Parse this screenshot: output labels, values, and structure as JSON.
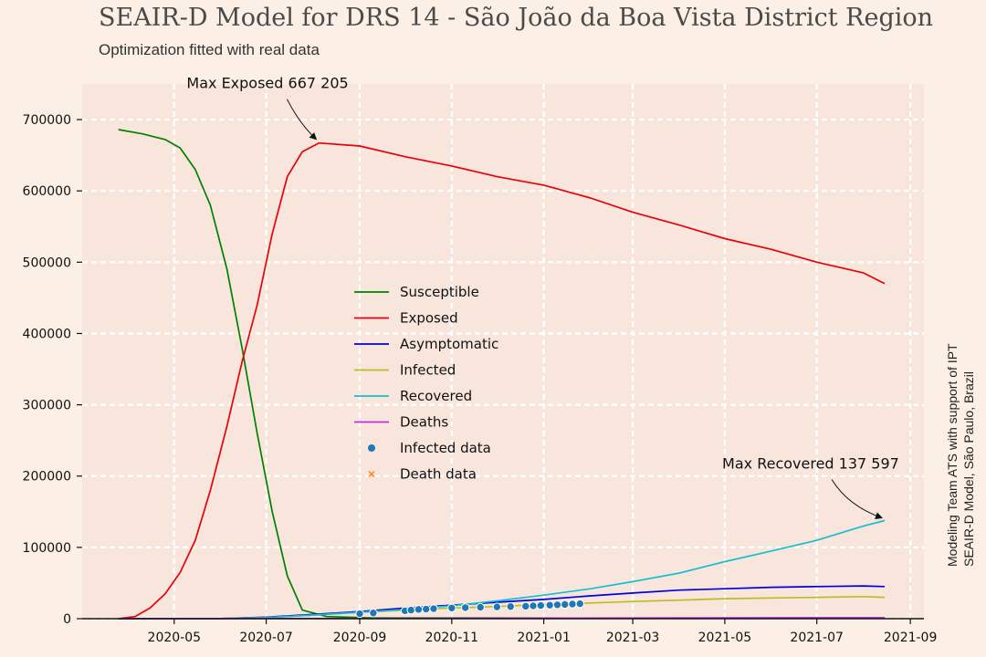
{
  "title": "SEAIR-D Model for DRS 14 - São João da Boa Vista District Region",
  "subtitle": "Optimization fitted with real data",
  "side_note": [
    "Modeling Team ATS with support of IPT",
    "SEAIR-D Model, São Paulo, Brazil"
  ],
  "colors": {
    "background": "#fcf0e6",
    "plot_bg": "#f8e6dc",
    "Susceptible": "#008000",
    "Exposed": "#e8000b",
    "Asymptomatic": "#0000e0",
    "Infected": "#bcbd22",
    "Recovered": "#17becf",
    "Deaths": "#c030d8",
    "Infected data": "#1f77b4",
    "Death data": "#ff7f0e"
  },
  "chart_data": {
    "type": "line",
    "title": "SEAIR-D Model for DRS 14 - São João da Boa Vista District Region",
    "subtitle": "Optimization fitted with real data",
    "xlabel": "",
    "ylabel": "",
    "x_range": [
      "2020-03-01",
      "2021-09-10"
    ],
    "ylim": [
      0,
      750000
    ],
    "x_ticks": [
      "2020-05",
      "2020-07",
      "2020-09",
      "2020-11",
      "2021-01",
      "2021-03",
      "2021-05",
      "2021-07",
      "2021-09"
    ],
    "y_ticks": [
      0,
      100000,
      200000,
      300000,
      400000,
      500000,
      600000,
      700000
    ],
    "grid": true,
    "legend_position": "center",
    "series": [
      {
        "name": "Susceptible",
        "points": [
          [
            "2020-03-25",
            686000
          ],
          [
            "2020-04-10",
            680000
          ],
          [
            "2020-04-25",
            672000
          ],
          [
            "2020-05-05",
            660000
          ],
          [
            "2020-05-15",
            630000
          ],
          [
            "2020-05-25",
            580000
          ],
          [
            "2020-06-05",
            490000
          ],
          [
            "2020-06-15",
            380000
          ],
          [
            "2020-06-25",
            260000
          ],
          [
            "2020-07-05",
            150000
          ],
          [
            "2020-07-15",
            60000
          ],
          [
            "2020-07-25",
            12000
          ],
          [
            "2020-08-10",
            3000
          ],
          [
            "2020-09-10",
            1000
          ],
          [
            "2021-08-15",
            500
          ]
        ]
      },
      {
        "name": "Exposed",
        "points": [
          [
            "2020-03-25",
            0
          ],
          [
            "2020-04-05",
            3000
          ],
          [
            "2020-04-15",
            15000
          ],
          [
            "2020-04-25",
            35000
          ],
          [
            "2020-05-05",
            65000
          ],
          [
            "2020-05-15",
            110000
          ],
          [
            "2020-05-25",
            180000
          ],
          [
            "2020-06-05",
            270000
          ],
          [
            "2020-06-15",
            360000
          ],
          [
            "2020-06-25",
            440000
          ],
          [
            "2020-07-05",
            540000
          ],
          [
            "2020-07-15",
            620000
          ],
          [
            "2020-07-25",
            655000
          ],
          [
            "2020-08-05",
            667205
          ],
          [
            "2020-09-01",
            663000
          ],
          [
            "2020-10-01",
            648000
          ],
          [
            "2020-11-01",
            635000
          ],
          [
            "2020-12-01",
            620000
          ],
          [
            "2021-01-01",
            608000
          ],
          [
            "2021-02-01",
            590000
          ],
          [
            "2021-03-01",
            570000
          ],
          [
            "2021-04-01",
            552000
          ],
          [
            "2021-05-01",
            533000
          ],
          [
            "2021-06-01",
            518000
          ],
          [
            "2021-07-01",
            500000
          ],
          [
            "2021-08-01",
            485000
          ],
          [
            "2021-08-15",
            470000
          ]
        ]
      },
      {
        "name": "Asymptomatic",
        "points": [
          [
            "2020-03-25",
            0
          ],
          [
            "2020-06-01",
            300
          ],
          [
            "2020-07-01",
            2000
          ],
          [
            "2020-08-01",
            6000
          ],
          [
            "2020-09-01",
            10000
          ],
          [
            "2020-10-01",
            15000
          ],
          [
            "2020-11-01",
            19000
          ],
          [
            "2020-12-01",
            23000
          ],
          [
            "2021-01-01",
            27000
          ],
          [
            "2021-02-01",
            32000
          ],
          [
            "2021-03-01",
            36000
          ],
          [
            "2021-04-01",
            40000
          ],
          [
            "2021-05-01",
            42000
          ],
          [
            "2021-06-01",
            44000
          ],
          [
            "2021-07-01",
            45000
          ],
          [
            "2021-08-01",
            46000
          ],
          [
            "2021-08-15",
            45000
          ]
        ]
      },
      {
        "name": "Infected",
        "points": [
          [
            "2020-03-25",
            0
          ],
          [
            "2020-06-01",
            200
          ],
          [
            "2020-07-01",
            1500
          ],
          [
            "2020-08-01",
            5000
          ],
          [
            "2020-09-01",
            9000
          ],
          [
            "2020-10-01",
            12000
          ],
          [
            "2020-11-01",
            15000
          ],
          [
            "2020-12-01",
            17000
          ],
          [
            "2021-01-01",
            20000
          ],
          [
            "2021-02-01",
            22000
          ],
          [
            "2021-03-01",
            24000
          ],
          [
            "2021-04-01",
            26000
          ],
          [
            "2021-05-01",
            28000
          ],
          [
            "2021-06-01",
            29000
          ],
          [
            "2021-07-01",
            30000
          ],
          [
            "2021-08-01",
            31000
          ],
          [
            "2021-08-15",
            30000
          ]
        ]
      },
      {
        "name": "Recovered",
        "points": [
          [
            "2020-03-25",
            0
          ],
          [
            "2020-06-01",
            100
          ],
          [
            "2020-07-01",
            1500
          ],
          [
            "2020-08-01",
            5000
          ],
          [
            "2020-09-01",
            9000
          ],
          [
            "2020-10-01",
            13000
          ],
          [
            "2020-11-01",
            18000
          ],
          [
            "2020-12-01",
            25000
          ],
          [
            "2021-01-01",
            33000
          ],
          [
            "2021-02-01",
            42000
          ],
          [
            "2021-03-01",
            52000
          ],
          [
            "2021-04-01",
            64000
          ],
          [
            "2021-05-01",
            80000
          ],
          [
            "2021-06-01",
            95000
          ],
          [
            "2021-07-01",
            110000
          ],
          [
            "2021-08-01",
            130000
          ],
          [
            "2021-08-15",
            137597
          ]
        ]
      },
      {
        "name": "Deaths",
        "points": [
          [
            "2020-03-25",
            0
          ],
          [
            "2020-09-01",
            300
          ],
          [
            "2021-01-01",
            800
          ],
          [
            "2021-04-01",
            1200
          ],
          [
            "2021-08-15",
            1500
          ]
        ]
      }
    ],
    "scatter": [
      {
        "name": "Infected data",
        "marker": "circle",
        "points": [
          [
            "2020-09-01",
            7000
          ],
          [
            "2020-09-10",
            8000
          ],
          [
            "2020-10-01",
            11000
          ],
          [
            "2020-10-05",
            12000
          ],
          [
            "2020-10-10",
            13000
          ],
          [
            "2020-10-15",
            13500
          ],
          [
            "2020-10-20",
            14000
          ],
          [
            "2020-11-01",
            15000
          ],
          [
            "2020-11-10",
            15500
          ],
          [
            "2020-11-20",
            16000
          ],
          [
            "2020-12-01",
            16500
          ],
          [
            "2020-12-10",
            17000
          ],
          [
            "2020-12-20",
            17500
          ],
          [
            "2020-12-25",
            18000
          ],
          [
            "2020-12-30",
            18500
          ],
          [
            "2021-01-05",
            19000
          ],
          [
            "2021-01-10",
            19500
          ],
          [
            "2021-01-15",
            20000
          ],
          [
            "2021-01-20",
            20500
          ],
          [
            "2021-01-25",
            21000
          ]
        ]
      },
      {
        "name": "Death data",
        "marker": "x",
        "points": []
      }
    ],
    "annotations": [
      {
        "text": "Max Exposed 667 205",
        "x": "2020-08-05",
        "y": 667205
      },
      {
        "text": "Max Recovered 137 597",
        "x": "2021-08-15",
        "y": 137597
      }
    ]
  }
}
